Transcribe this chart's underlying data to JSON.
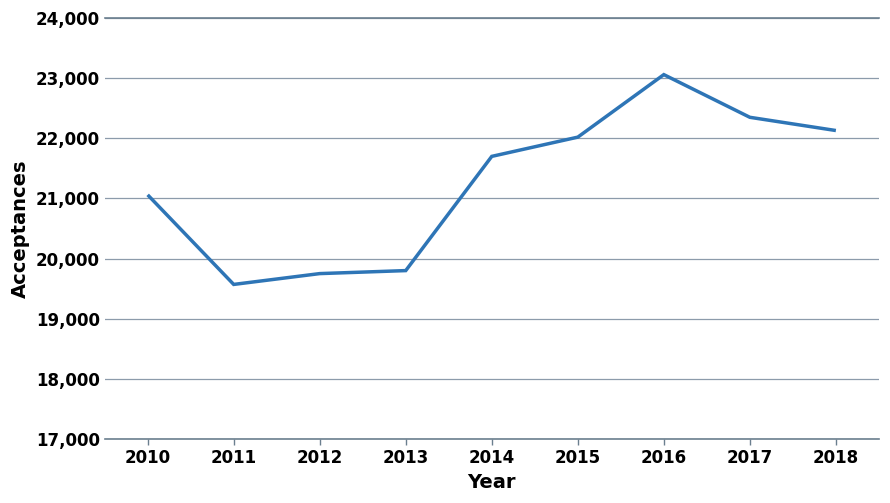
{
  "years": [
    2010,
    2011,
    2012,
    2013,
    2014,
    2015,
    2016,
    2017,
    2018
  ],
  "values": [
    21060,
    19570,
    19750,
    19800,
    21700,
    22020,
    23060,
    22350,
    22130
  ],
  "line_color": "#2E75B6",
  "line_width": 2.5,
  "xlabel": "Year",
  "ylabel": "Acceptances",
  "ylim": [
    17000,
    24000
  ],
  "yticks": [
    17000,
    18000,
    19000,
    20000,
    21000,
    22000,
    23000,
    24000
  ],
  "xlim": [
    2009.5,
    2018.5
  ],
  "xticks": [
    2010,
    2011,
    2012,
    2013,
    2014,
    2015,
    2016,
    2017,
    2018
  ],
  "grid_color": "#8C9BAB",
  "background_color": "#FFFFFF",
  "xlabel_fontsize": 14,
  "ylabel_fontsize": 14,
  "tick_fontsize": 12,
  "spine_color": "#6B7F8F"
}
